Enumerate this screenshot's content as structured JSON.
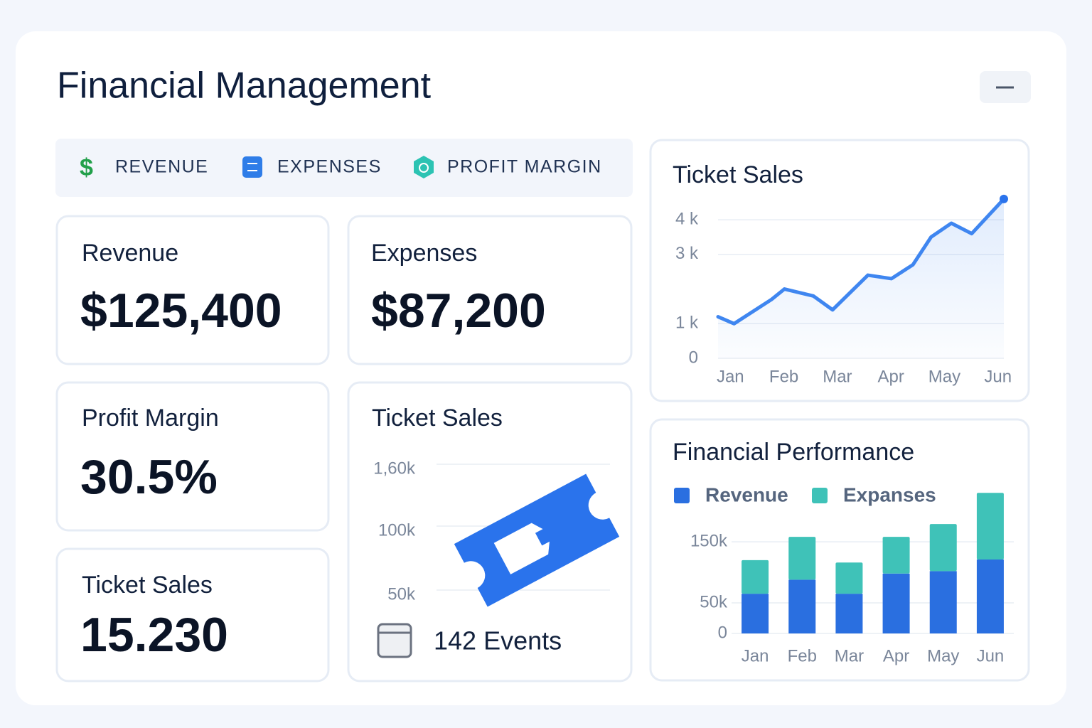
{
  "header": {
    "title": "Financial Management"
  },
  "tabs": [
    "REVENUE",
    "EXPENSES",
    "PROFIT MARGIN"
  ],
  "cards": [
    {
      "label": "Revenue",
      "value": "$125,400"
    },
    {
      "label": "Expenses",
      "value": "$87,200"
    },
    {
      "label": "Profit Margin",
      "value": "30.5%"
    },
    {
      "label": "Ticket Sales",
      "value": "15.230"
    }
  ],
  "ticket_card": {
    "title": "Ticket Sales",
    "ticks": [
      "1,60k",
      "100k",
      "50k"
    ],
    "events": "142 Events"
  },
  "line_chart": {
    "type": "line",
    "title": "Ticket Sales",
    "x": [
      -0.23,
      0.07,
      0.77,
      1.01,
      1.55,
      1.91,
      2.57,
      3.01,
      3.41,
      3.75,
      4.13,
      4.51,
      5.11
    ],
    "values": [
      1200,
      1000,
      1700,
      2000,
      1800,
      1400,
      2400,
      2300,
      2700,
      3500,
      3900,
      3600,
      4600
    ],
    "color": "#3f86f0",
    "xlim": [
      -0.23,
      5.11
    ],
    "xticks": [
      {
        "value": 0,
        "label": "Jan"
      },
      {
        "value": 1,
        "label": "Feb"
      },
      {
        "value": 2,
        "label": "Mar"
      },
      {
        "value": 3,
        "label": "Apr"
      },
      {
        "value": 4,
        "label": "May"
      },
      {
        "value": 5,
        "label": "Jun"
      }
    ],
    "ylim": [
      0,
      4700
    ],
    "yticks": [
      0,
      {
        "value": 1000,
        "label": "1 k"
      },
      {
        "value": 3000,
        "label": "3 k"
      },
      {
        "value": 4000,
        "label": "4 k"
      }
    ],
    "grid": true
  },
  "bar_chart": {
    "type": "stacked_bar",
    "title": "Financial Performance",
    "categories": [
      "Jan",
      "Feb",
      "Mar",
      "Apr",
      "May",
      "Jun"
    ],
    "series": [
      {
        "name": "Revenue",
        "color": "#2a6fe0",
        "values": [
          65000,
          88000,
          65000,
          98000,
          102000,
          121000
        ]
      },
      {
        "name": "Expanses",
        "color": "#3fc2b8",
        "values": [
          55000,
          70000,
          51000,
          60000,
          77000,
          109000
        ]
      }
    ],
    "ylim": [
      0,
      235000
    ],
    "yticks": [
      0,
      {
        "value": 50000,
        "label": "50k"
      },
      {
        "value": 150000,
        "label": "150k"
      }
    ],
    "grid": true
  }
}
